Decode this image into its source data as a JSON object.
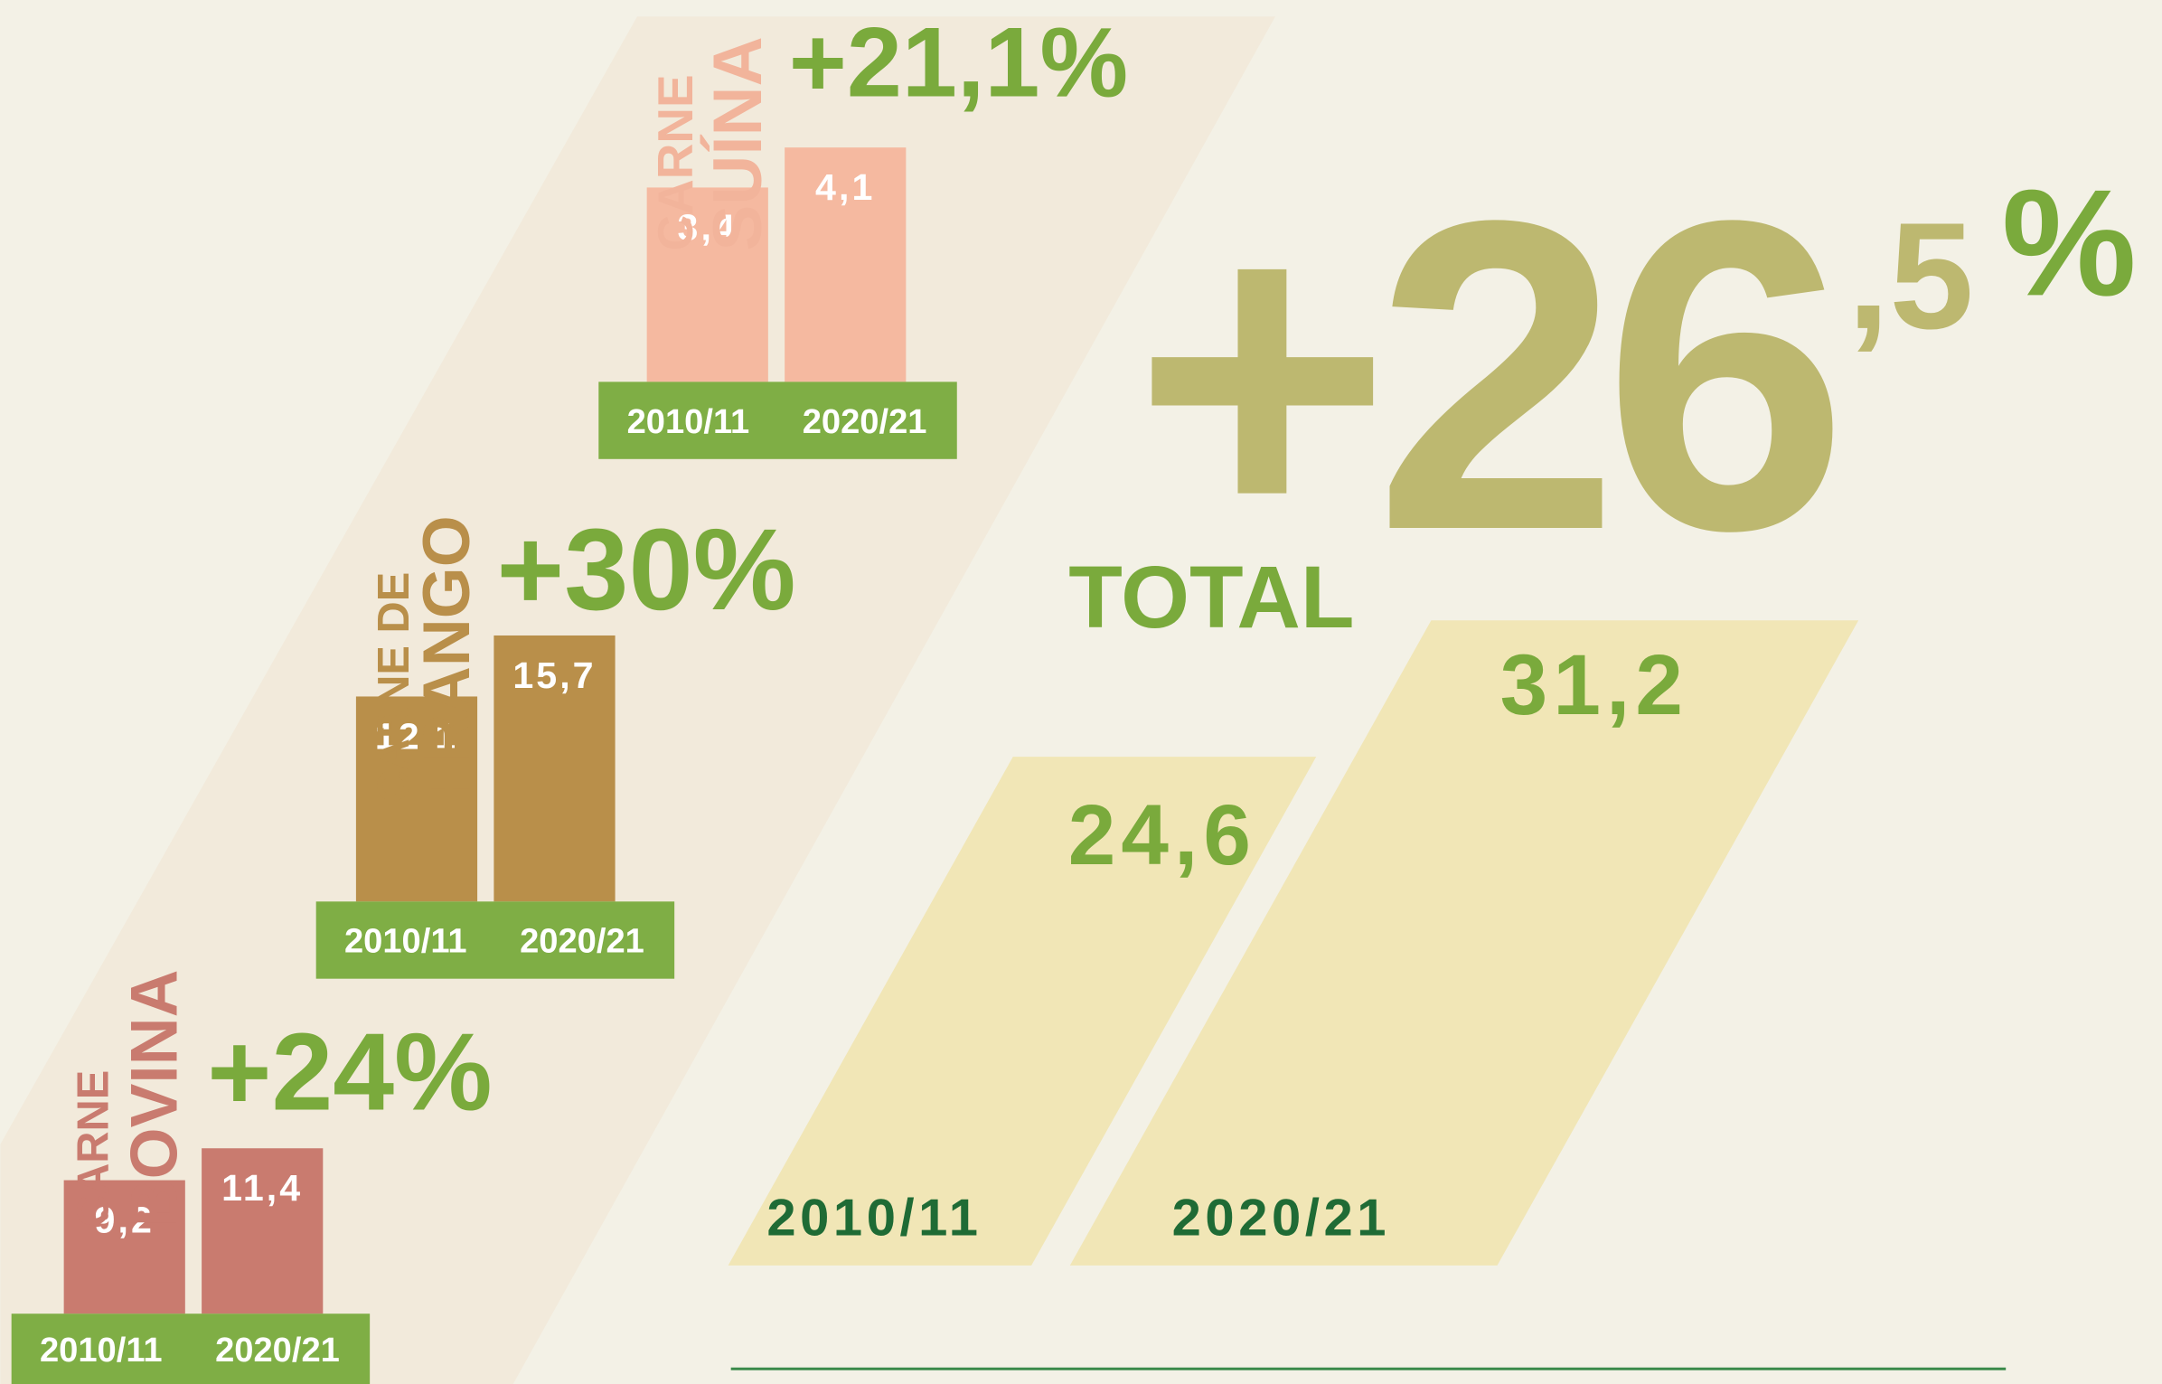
{
  "chart_data": [
    {
      "type": "bar",
      "title_lines": [
        "CARNE",
        "SUÍNA"
      ],
      "annotation": "+21,1%",
      "categories": [
        "2010/11",
        "2020/21"
      ],
      "values": [
        3.4,
        4.1
      ],
      "value_labels": [
        "3,4",
        "4,1"
      ],
      "color": "#f5b9a0",
      "title_color": "#f2b49b"
    },
    {
      "type": "bar",
      "title_lines": [
        "CARNE DE",
        "FRANGO"
      ],
      "annotation": "+30%",
      "categories": [
        "2010/11",
        "2020/21"
      ],
      "values": [
        12.1,
        15.7
      ],
      "value_labels": [
        "12,1",
        "15,7"
      ],
      "color": "#b98f4a",
      "title_color": "#b98f4a"
    },
    {
      "type": "bar",
      "title_lines": [
        "CARNE",
        "BOVINA"
      ],
      "annotation": "+24%",
      "categories": [
        "2010/11",
        "2020/21"
      ],
      "values": [
        9.2,
        11.4
      ],
      "value_labels": [
        "9,2",
        "11,4"
      ],
      "color": "#c97b6f",
      "title_color": "#c97b6f"
    },
    {
      "type": "skewed-bar",
      "title": "TOTAL",
      "annotation_parts": [
        "+26",
        ",5",
        "%"
      ],
      "categories": [
        "2010/11",
        "2020/21"
      ],
      "values": [
        24.6,
        31.2
      ],
      "value_labels": [
        "24,6",
        "31,2"
      ],
      "color": "#f1e6b6"
    }
  ]
}
